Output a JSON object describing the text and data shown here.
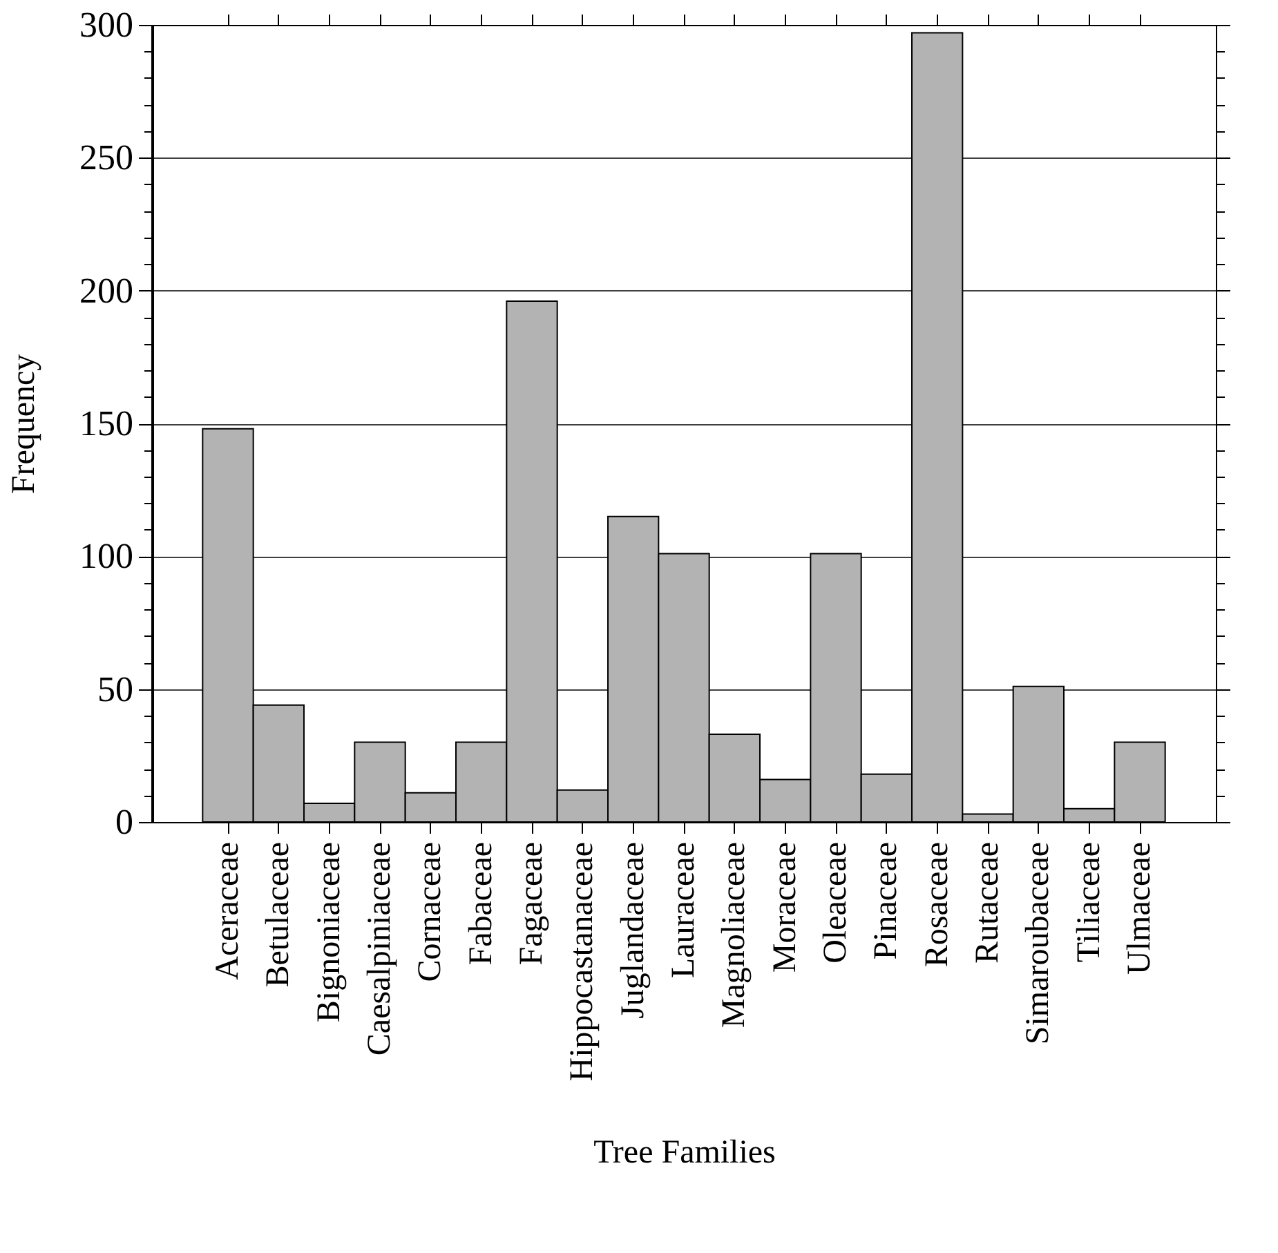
{
  "chart_data": {
    "type": "bar",
    "xlabel": "Tree Families",
    "ylabel": "Frequency",
    "categories": [
      "Aceraceae",
      "Betulaceae",
      "Bignoniaceae",
      "Caesalpiniaceae",
      "Cornaceae",
      "Fabaceae",
      "Fagaceae",
      "Hippocastanaceae",
      "Juglandaceae",
      "Lauraceae",
      "Magnoliaceae",
      "Moraceae",
      "Oleaceae",
      "Pinaceae",
      "Rosaceae",
      "Rutaceae",
      "Simaroubaceae",
      "Tiliaceae",
      "Ulmaceae"
    ],
    "values": [
      148,
      44,
      7,
      30,
      11,
      30,
      196,
      12,
      115,
      101,
      33,
      16,
      101,
      18,
      297,
      3,
      51,
      5,
      30
    ],
    "color": "#b3b3b3",
    "ylim": [
      0,
      300
    ],
    "yticks": [
      0,
      {
        "value": 10,
        "label": null
      },
      {
        "value": 20,
        "label": null
      },
      {
        "value": 30,
        "label": null
      },
      {
        "value": 40,
        "label": null
      },
      50,
      {
        "value": 60,
        "label": null
      },
      {
        "value": 70,
        "label": null
      },
      {
        "value": 80,
        "label": null
      },
      {
        "value": 90,
        "label": null
      },
      100,
      {
        "value": 110,
        "label": null
      },
      {
        "value": 120,
        "label": null
      },
      {
        "value": 130,
        "label": null
      },
      {
        "value": 140,
        "label": null
      },
      150,
      {
        "value": 160,
        "label": null
      },
      {
        "value": 170,
        "label": null
      },
      {
        "value": 180,
        "label": null
      },
      {
        "value": 190,
        "label": null
      },
      200,
      {
        "value": 210,
        "label": null
      },
      {
        "value": 220,
        "label": null
      },
      {
        "value": 230,
        "label": null
      },
      {
        "value": 240,
        "label": null
      },
      250,
      {
        "value": 260,
        "label": null
      },
      {
        "value": 270,
        "label": null
      },
      {
        "value": 280,
        "label": null
      },
      {
        "value": 290,
        "label": null
      },
      300
    ],
    "grid": "y"
  }
}
